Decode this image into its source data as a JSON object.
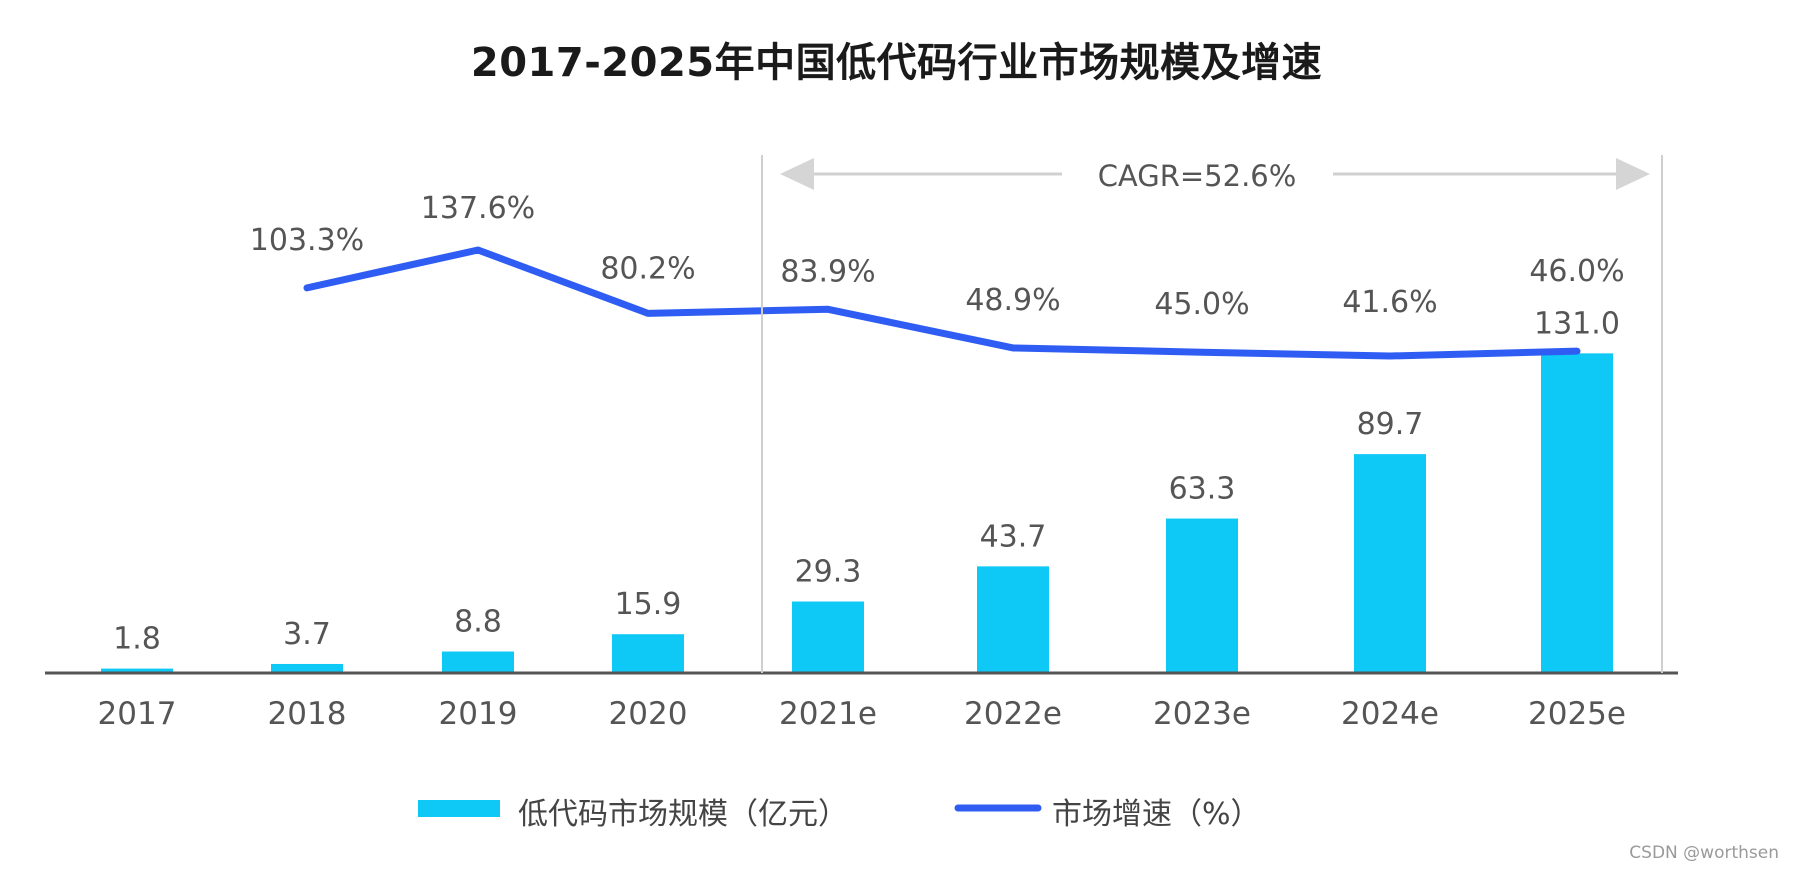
{
  "chart_data": {
    "type": "bar",
    "title": "2017-2025年中国低代码行业市场规模及增速",
    "categories": [
      "2017",
      "2018",
      "2019",
      "2020",
      "2021e",
      "2022e",
      "2023e",
      "2024e",
      "2025e"
    ],
    "series": [
      {
        "name": "低代码市场规模（亿元）",
        "type": "bar",
        "values": [
          1.8,
          3.7,
          8.8,
          15.9,
          29.3,
          43.7,
          63.3,
          89.7,
          131.0
        ],
        "labels": [
          "1.8",
          "3.7",
          "8.8",
          "15.9",
          "29.3",
          "43.7",
          "63.3",
          "89.7",
          "131.0"
        ],
        "color": "#0ec8f5"
      },
      {
        "name": "市场增速（%）",
        "type": "line",
        "values": [
          null,
          103.3,
          137.6,
          80.2,
          83.9,
          48.9,
          45.0,
          41.6,
          46.0
        ],
        "labels": [
          "",
          "103.3%",
          "137.6%",
          "80.2%",
          "83.9%",
          "48.9%",
          "45.0%",
          "41.6%",
          "46.0%"
        ],
        "color": "#2f5df3"
      }
    ],
    "annotation": {
      "text": "CAGR=52.6%",
      "from": "2021e",
      "to": "2025e"
    },
    "grid": false,
    "legend_position": "bottom-center"
  },
  "watermark": "CSDN @worthsen"
}
